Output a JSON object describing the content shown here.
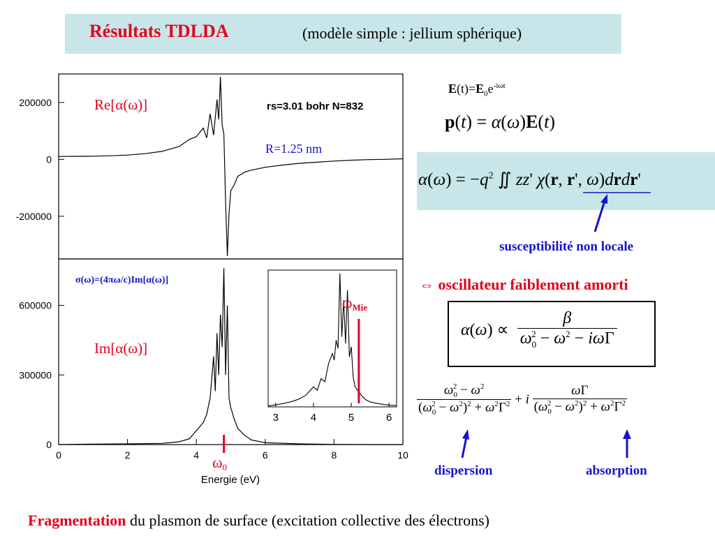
{
  "slide": {
    "title": "Résultats TDLDA",
    "subtitle": "(modèle simple : jellium sphérique)",
    "bottom_red": "Fragmentation",
    "bottom_rest": " du plasmon de surface (excitation collective des électrons)"
  },
  "equations": {
    "field": "E(t)=E0e-iωt",
    "dipole": "p(t) = α(ω)E(t)",
    "polarizability": "α(ω) = −q² ∬ zz' χ(r, r', ω)drdr'",
    "susceptibility_label": "susceptibilité non locale",
    "oscillator_label": "⇔ oscillateur faiblement amorti",
    "lorentz": "α(ω) ∝ β / (ω0² − ω² − iωΓ)",
    "expansion_real": "(ω0² − ω²) / ((ω0² − ω²)² + ω²Γ²)",
    "expansion_imag": "ωΓ / ((ω0² − ω²)² + ω²Γ²)",
    "dispersion_label": "dispersion",
    "absorption_label": "absorption"
  },
  "chart_data": [
    {
      "type": "line",
      "panel": "top",
      "label": "Re[α(ω)]",
      "annotation_params": "rs=3.01 bohr N=832",
      "annotation_radius": "R=1.25 nm",
      "xlim": [
        0,
        10
      ],
      "ylim": [
        -350000,
        300000
      ],
      "yticks": [
        200000,
        0,
        -200000
      ],
      "ytick_labels": [
        "200000",
        "0",
        "-200000"
      ],
      "series": [
        {
          "x": [
            0,
            0.5,
            1,
            1.5,
            2,
            2.5,
            3,
            3.5,
            3.8,
            4.0,
            4.2,
            4.3,
            4.4,
            4.5,
            4.6,
            4.65,
            4.7,
            4.75,
            4.8,
            4.85,
            4.9,
            4.95,
            5.0,
            5.1,
            5.2,
            5.4,
            5.6,
            6.0,
            6.5,
            7,
            7.5,
            8,
            8.5,
            9,
            9.5,
            10
          ],
          "y": [
            10000,
            10500,
            11000,
            12500,
            15000,
            20000,
            28000,
            45000,
            70000,
            80000,
            110000,
            75000,
            160000,
            85000,
            210000,
            140000,
            290000,
            120000,
            90000,
            -150000,
            -340000,
            -190000,
            -110000,
            -90000,
            -60000,
            -45000,
            -38000,
            -28000,
            -20000,
            -14000,
            -10000,
            -6000,
            -3000,
            -1000,
            0,
            2000
          ]
        }
      ]
    },
    {
      "type": "line",
      "panel": "bottom",
      "label": "Im[α(ω)]",
      "annotation_formula": "σ(ω)=(4πω/c)Im[α(ω)]",
      "xlabel": "Energie (eV)",
      "xlim": [
        0,
        10
      ],
      "ylim": [
        0,
        800000
      ],
      "xticks": [
        0,
        2,
        4,
        6,
        8,
        10
      ],
      "xtick_labels": [
        "0",
        "2",
        "4",
        "6",
        "8",
        "10"
      ],
      "yticks": [
        0,
        300000,
        600000
      ],
      "ytick_labels": [
        "0",
        "300000",
        "600000"
      ],
      "marker_label": "ω0",
      "marker_x": 4.8,
      "series": [
        {
          "x": [
            0,
            1,
            2,
            3,
            3.5,
            3.8,
            4.0,
            4.2,
            4.3,
            4.4,
            4.5,
            4.55,
            4.6,
            4.65,
            4.7,
            4.75,
            4.8,
            4.85,
            4.9,
            4.95,
            5.0,
            5.1,
            5.2,
            5.4,
            5.6,
            6.0,
            7,
            8,
            9,
            10
          ],
          "y": [
            0,
            2000,
            3000,
            5000,
            12000,
            25000,
            60000,
            95000,
            130000,
            200000,
            380000,
            230000,
            480000,
            300000,
            560000,
            420000,
            760000,
            300000,
            600000,
            200000,
            160000,
            110000,
            70000,
            40000,
            20000,
            8000,
            3000,
            1000,
            0,
            0
          ]
        }
      ]
    },
    {
      "type": "line",
      "panel": "inset",
      "xlim": [
        2.8,
        6.2
      ],
      "ylim": [
        0,
        820000
      ],
      "xticks": [
        3,
        4,
        5,
        6
      ],
      "xtick_labels": [
        "3",
        "4",
        "5",
        "6"
      ],
      "marker_label": "ωMie",
      "marker_sub": "Mie",
      "marker_x": 5.2,
      "series": [
        {
          "x": [
            2.8,
            3.0,
            3.2,
            3.4,
            3.6,
            3.8,
            4.0,
            4.1,
            4.2,
            4.3,
            4.4,
            4.5,
            4.55,
            4.6,
            4.65,
            4.7,
            4.75,
            4.8,
            4.85,
            4.9,
            4.95,
            5.0,
            5.05,
            5.1,
            5.2,
            5.3,
            5.4,
            5.5,
            5.7,
            6.0,
            6.2
          ],
          "y": [
            5000,
            12000,
            20000,
            30000,
            45000,
            70000,
            120000,
            100000,
            170000,
            150000,
            260000,
            320000,
            280000,
            400000,
            350000,
            800000,
            420000,
            640000,
            380000,
            700000,
            300000,
            360000,
            180000,
            120000,
            90000,
            60000,
            40000,
            30000,
            20000,
            10000,
            8000
          ]
        }
      ]
    }
  ],
  "colors": {
    "title_bg": "#c8e6ea",
    "accent_red": "#e4001c",
    "accent_blue": "#1414c8"
  }
}
